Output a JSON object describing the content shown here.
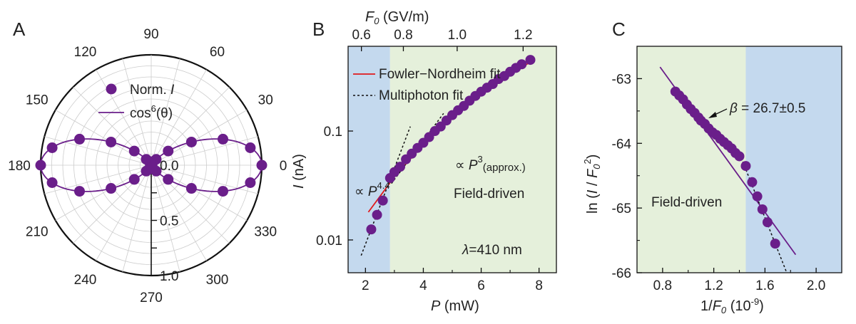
{
  "chart_data": [
    {
      "type": "polar-scatter",
      "panel_label": "A",
      "angle_ticks": [
        "0",
        "30",
        "60",
        "90",
        "120",
        "150",
        "180",
        "210",
        "240",
        "270",
        "300",
        "330"
      ],
      "radial_ticks": [
        "0.0",
        "0.5",
        "1.0"
      ],
      "rlim": [
        0,
        1.0
      ],
      "legend": {
        "placement": "top-left-inside",
        "marker_label": "Norm. ",
        "marker_var": "I",
        "line_label": "cos",
        "line_sup": "6",
        "line_arg": "(θ)"
      },
      "series": [
        {
          "name": "Norm. I",
          "kind": "points",
          "theta_deg": [
            0,
            10,
            20,
            30,
            40,
            50,
            60,
            70,
            80,
            90,
            100,
            110,
            120,
            130,
            140,
            150,
            160,
            170,
            180,
            190,
            200,
            210,
            220,
            230,
            240,
            250,
            260,
            270,
            280,
            290,
            300,
            310,
            320,
            330,
            340,
            350
          ],
          "r": [
            1.0,
            0.91,
            0.69,
            0.42,
            0.2,
            0.07,
            0.02,
            0.02,
            0.03,
            0.03,
            0.03,
            0.02,
            0.02,
            0.07,
            0.2,
            0.42,
            0.69,
            0.91,
            1.0,
            0.91,
            0.69,
            0.42,
            0.2,
            0.07,
            0.02,
            0.02,
            0.03,
            0.03,
            0.03,
            0.02,
            0.02,
            0.07,
            0.2,
            0.42,
            0.69,
            0.91
          ]
        },
        {
          "name": "cos6(θ)",
          "kind": "line",
          "function": "cos^6"
        }
      ],
      "colors": {
        "data": "#6a1e8a",
        "axes": "#111111",
        "grid": "#cccccc"
      }
    },
    {
      "type": "scatter",
      "panel_label": "B",
      "xlabel_var": "P",
      "xlabel_unit": " (mW)",
      "ylabel_var": "I",
      "ylabel_unit": " (nA)",
      "top_xlabel_var": "F",
      "top_xlabel_sub": "0",
      "top_xlabel_unit": " (GV/m)",
      "xlim": [
        1.4,
        8.6
      ],
      "ylim": [
        0.005,
        0.6
      ],
      "yscale": "log",
      "x_ticks": [
        "2",
        "4",
        "6",
        "8"
      ],
      "y_ticks": [
        "0.01",
        "0.1"
      ],
      "top_x_ticks": [
        {
          "label": "0.6",
          "P": 1.86
        },
        {
          "label": "0.8",
          "P": 3.31
        },
        {
          "label": "1.0",
          "P": 5.17
        },
        {
          "label": "1.2",
          "P": 7.45
        }
      ],
      "regions": [
        {
          "from": 1.4,
          "to": 2.85,
          "color": "#c4d9ee"
        },
        {
          "from": 2.85,
          "to": 8.6,
          "color": "#e5f0db"
        }
      ],
      "series": [
        {
          "name": "data",
          "kind": "points",
          "x": [
            2.2,
            2.4,
            2.6,
            2.85,
            3.0,
            3.2,
            3.4,
            3.6,
            3.8,
            4.0,
            4.2,
            4.4,
            4.6,
            4.8,
            5.0,
            5.2,
            5.4,
            5.6,
            5.8,
            6.0,
            6.2,
            6.4,
            6.6,
            6.8,
            7.0,
            7.2,
            7.4,
            7.7
          ],
          "y": [
            0.0125,
            0.017,
            0.023,
            0.037,
            0.042,
            0.047,
            0.055,
            0.062,
            0.07,
            0.078,
            0.088,
            0.1,
            0.11,
            0.125,
            0.14,
            0.155,
            0.17,
            0.19,
            0.21,
            0.23,
            0.25,
            0.27,
            0.3,
            0.32,
            0.35,
            0.38,
            0.41,
            0.45
          ]
        },
        {
          "name": "Fowler−Nordheim fit",
          "kind": "line",
          "color": "#e0191b",
          "x": [
            2.1,
            3.0,
            4.0,
            5.0,
            6.0,
            7.0,
            7.7
          ],
          "y": [
            0.018,
            0.038,
            0.075,
            0.13,
            0.22,
            0.33,
            0.43
          ]
        },
        {
          "name": "Multiphoton fit",
          "kind": "dashed",
          "color": "#111111",
          "x": [
            1.85,
            3.55
          ],
          "y": [
            0.0072,
            0.11
          ]
        },
        {
          "name": "Multiphoton fit (P^3)",
          "kind": "dashed",
          "color": "#111111",
          "x": [
            2.9,
            4.7
          ],
          "y": [
            0.033,
            0.145
          ]
        }
      ],
      "legend": {
        "placement": "top-left",
        "entries": [
          "Fowler−Nordheim fit",
          "Multiphoton fit"
        ]
      },
      "annotations": {
        "prop_low": "∝ ",
        "prop_low_var": "P",
        "prop_low_exp": "4.4",
        "prop_high": "∝ ",
        "prop_high_var": "P",
        "prop_high_exp": "3",
        "prop_high_sub": "(approx.)",
        "region_label": "Field-driven",
        "lambda_var": "λ",
        "lambda_text": "=410 nm"
      }
    },
    {
      "type": "scatter",
      "panel_label": "C",
      "xlabel_prefix": "1/",
      "xlabel_var": "F",
      "xlabel_sub": "0",
      "xlabel_unit": " (10",
      "xlabel_exp": "-9",
      "xlabel_close": ")",
      "ylabel_prefix": "ln (",
      "ylabel_var": "I",
      "ylabel_mid": " / ",
      "ylabel_var2": "F",
      "ylabel_sub": "0",
      "ylabel_exp": "2",
      "ylabel_close": ")",
      "xlim": [
        0.6,
        2.2
      ],
      "ylim": [
        -66.0,
        -62.5
      ],
      "x_ticks": [
        "0.8",
        "1.2",
        "1.6",
        "2.0"
      ],
      "y_ticks": [
        "-63",
        "-64",
        "-65",
        "-66"
      ],
      "regions": [
        {
          "from": 0.6,
          "to": 1.45,
          "color": "#e5f0db"
        },
        {
          "from": 1.45,
          "to": 2.2,
          "color": "#c4d9ee"
        }
      ],
      "series": [
        {
          "name": "data",
          "kind": "points",
          "x": [
            0.9,
            0.93,
            0.96,
            0.99,
            1.02,
            1.05,
            1.08,
            1.1,
            1.13,
            1.16,
            1.19,
            1.22,
            1.25,
            1.28,
            1.31,
            1.34,
            1.37,
            1.4,
            1.45,
            1.5,
            1.54,
            1.58,
            1.62,
            1.68
          ],
          "y": [
            -63.2,
            -63.26,
            -63.32,
            -63.4,
            -63.47,
            -63.53,
            -63.6,
            -63.65,
            -63.7,
            -63.77,
            -63.83,
            -63.87,
            -63.93,
            -63.98,
            -64.03,
            -64.08,
            -64.15,
            -64.2,
            -64.35,
            -64.6,
            -64.82,
            -65.02,
            -65.22,
            -65.55
          ]
        },
        {
          "name": "fit",
          "kind": "line",
          "color": "#6a1e8a",
          "x": [
            0.78,
            1.84
          ],
          "y": [
            -62.82,
            -65.72
          ]
        },
        {
          "name": "fit-dashed",
          "kind": "dashed",
          "color": "#111111",
          "x": [
            1.39,
            1.77
          ],
          "y": [
            -64.1,
            -66.0
          ]
        }
      ],
      "annotations": {
        "beta_var": "β",
        "beta_text": " = 26.7",
        "beta_pm": "±",
        "beta_err": "0.5",
        "region_label": "Field-driven"
      }
    }
  ]
}
